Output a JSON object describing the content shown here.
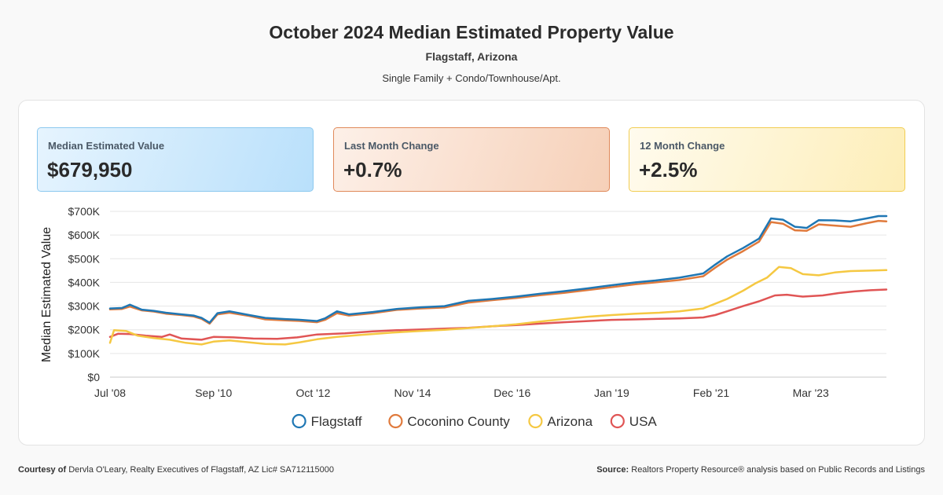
{
  "header": {
    "title": "October 2024 Median Estimated Property Value",
    "location": "Flagstaff, Arizona",
    "property_types": "Single Family + Condo/Townhouse/Apt."
  },
  "cards": [
    {
      "label": "Median Estimated Value",
      "value": "$679,950",
      "color": "#2b8fd6"
    },
    {
      "label": "Last Month Change",
      "value": "+0.7%",
      "color": "#e07a3c"
    },
    {
      "label": "12 Month Change",
      "value": "+2.5%",
      "color": "#f2c230"
    }
  ],
  "footer": {
    "courtesy_label": "Courtesy of",
    "courtesy_text": "Dervla O'Leary, Realty Executives of Flagstaff, AZ Lic# SA712115000",
    "source_label": "Source:",
    "source_text": "Realtors Property Resource® analysis based on Public Records and Listings"
  },
  "chart_data": {
    "type": "line",
    "ylabel": "Median Estimated Value",
    "ylim": [
      0,
      700000
    ],
    "yticks": [
      0,
      100000,
      200000,
      300000,
      400000,
      500000,
      600000,
      700000
    ],
    "ytick_labels": [
      "$0",
      "$100K",
      "$200K",
      "$300K",
      "$400K",
      "$500K",
      "$600K",
      "$700K"
    ],
    "xlim": [
      "2008-07",
      "2024-10"
    ],
    "xticks": [
      "2008-07",
      "2010-09",
      "2012-10",
      "2014-11",
      "2016-12",
      "2019-01",
      "2021-02",
      "2023-03"
    ],
    "xtick_labels": [
      "Jul '08",
      "Sep '10",
      "Oct '12",
      "Nov '14",
      "Dec '16",
      "Jan '19",
      "Feb '21",
      "Mar '23"
    ],
    "grid": true,
    "legend_position": "bottom",
    "series": [
      {
        "name": "Flagstaff",
        "color": "#1f77b4",
        "points": [
          [
            "2008-07",
            290000
          ],
          [
            "2008-10",
            292000
          ],
          [
            "2008-12",
            306000
          ],
          [
            "2009-03",
            285000
          ],
          [
            "2009-06",
            280000
          ],
          [
            "2009-09",
            272000
          ],
          [
            "2010-01",
            265000
          ],
          [
            "2010-04",
            260000
          ],
          [
            "2010-06",
            250000
          ],
          [
            "2010-08",
            230000
          ],
          [
            "2010-10",
            270000
          ],
          [
            "2011-01",
            278000
          ],
          [
            "2011-06",
            262000
          ],
          [
            "2011-10",
            250000
          ],
          [
            "2012-03",
            245000
          ],
          [
            "2012-07",
            242000
          ],
          [
            "2012-11",
            237000
          ],
          [
            "2013-01",
            248000
          ],
          [
            "2013-04",
            278000
          ],
          [
            "2013-07",
            265000
          ],
          [
            "2014-01",
            275000
          ],
          [
            "2014-07",
            288000
          ],
          [
            "2015-01",
            295000
          ],
          [
            "2015-07",
            300000
          ],
          [
            "2016-01",
            322000
          ],
          [
            "2016-07",
            330000
          ],
          [
            "2017-01",
            340000
          ],
          [
            "2017-07",
            352000
          ],
          [
            "2018-01",
            363000
          ],
          [
            "2018-07",
            375000
          ],
          [
            "2019-01",
            388000
          ],
          [
            "2019-07",
            400000
          ],
          [
            "2019-12",
            408000
          ],
          [
            "2020-06",
            420000
          ],
          [
            "2020-12",
            438000
          ],
          [
            "2021-03",
            475000
          ],
          [
            "2021-06",
            510000
          ],
          [
            "2021-10",
            545000
          ],
          [
            "2022-02",
            585000
          ],
          [
            "2022-05",
            670000
          ],
          [
            "2022-08",
            665000
          ],
          [
            "2022-11",
            635000
          ],
          [
            "2023-02",
            630000
          ],
          [
            "2023-05",
            663000
          ],
          [
            "2023-09",
            662000
          ],
          [
            "2024-01",
            658000
          ],
          [
            "2024-05",
            670000
          ],
          [
            "2024-08",
            680000
          ],
          [
            "2024-10",
            680000
          ]
        ]
      },
      {
        "name": "Coconino County",
        "color": "#e07a3c",
        "points": [
          [
            "2008-07",
            286000
          ],
          [
            "2008-10",
            288000
          ],
          [
            "2008-12",
            298000
          ],
          [
            "2009-03",
            282000
          ],
          [
            "2009-06",
            277000
          ],
          [
            "2009-09",
            268000
          ],
          [
            "2010-01",
            262000
          ],
          [
            "2010-04",
            256000
          ],
          [
            "2010-06",
            246000
          ],
          [
            "2010-08",
            226000
          ],
          [
            "2010-10",
            265000
          ],
          [
            "2011-01",
            272000
          ],
          [
            "2011-06",
            258000
          ],
          [
            "2011-10",
            244000
          ],
          [
            "2012-03",
            240000
          ],
          [
            "2012-07",
            237000
          ],
          [
            "2012-11",
            232000
          ],
          [
            "2013-01",
            242000
          ],
          [
            "2013-04",
            270000
          ],
          [
            "2013-07",
            260000
          ],
          [
            "2014-01",
            270000
          ],
          [
            "2014-07",
            284000
          ],
          [
            "2015-01",
            290000
          ],
          [
            "2015-07",
            294000
          ],
          [
            "2016-01",
            315000
          ],
          [
            "2016-07",
            325000
          ],
          [
            "2017-01",
            334000
          ],
          [
            "2017-07",
            346000
          ],
          [
            "2018-01",
            356000
          ],
          [
            "2018-07",
            368000
          ],
          [
            "2019-01",
            380000
          ],
          [
            "2019-07",
            392000
          ],
          [
            "2019-12",
            400000
          ],
          [
            "2020-06",
            410000
          ],
          [
            "2020-12",
            426000
          ],
          [
            "2021-03",
            462000
          ],
          [
            "2021-06",
            496000
          ],
          [
            "2021-10",
            532000
          ],
          [
            "2022-02",
            572000
          ],
          [
            "2022-05",
            655000
          ],
          [
            "2022-08",
            648000
          ],
          [
            "2022-11",
            620000
          ],
          [
            "2023-02",
            618000
          ],
          [
            "2023-05",
            645000
          ],
          [
            "2023-09",
            640000
          ],
          [
            "2024-01",
            635000
          ],
          [
            "2024-05",
            650000
          ],
          [
            "2024-08",
            660000
          ],
          [
            "2024-10",
            658000
          ]
        ]
      },
      {
        "name": "Arizona",
        "color": "#f5c842",
        "points": [
          [
            "2008-07",
            145000
          ],
          [
            "2008-08",
            198000
          ],
          [
            "2008-11",
            195000
          ],
          [
            "2009-02",
            175000
          ],
          [
            "2009-06",
            165000
          ],
          [
            "2009-10",
            158000
          ],
          [
            "2010-02",
            145000
          ],
          [
            "2010-06",
            138000
          ],
          [
            "2010-09",
            150000
          ],
          [
            "2011-01",
            155000
          ],
          [
            "2011-06",
            147000
          ],
          [
            "2011-10",
            140000
          ],
          [
            "2012-03",
            138000
          ],
          [
            "2012-07",
            148000
          ],
          [
            "2012-11",
            160000
          ],
          [
            "2013-04",
            170000
          ],
          [
            "2013-10",
            178000
          ],
          [
            "2014-06",
            188000
          ],
          [
            "2015-01",
            195000
          ],
          [
            "2015-07",
            200000
          ],
          [
            "2016-01",
            207000
          ],
          [
            "2016-07",
            215000
          ],
          [
            "2017-01",
            223000
          ],
          [
            "2017-07",
            235000
          ],
          [
            "2018-01",
            245000
          ],
          [
            "2018-07",
            255000
          ],
          [
            "2019-01",
            262000
          ],
          [
            "2019-07",
            268000
          ],
          [
            "2020-01",
            272000
          ],
          [
            "2020-06",
            278000
          ],
          [
            "2020-12",
            290000
          ],
          [
            "2021-03",
            310000
          ],
          [
            "2021-06",
            330000
          ],
          [
            "2021-10",
            365000
          ],
          [
            "2022-01",
            395000
          ],
          [
            "2022-04",
            420000
          ],
          [
            "2022-07",
            465000
          ],
          [
            "2022-10",
            460000
          ],
          [
            "2023-01",
            435000
          ],
          [
            "2023-05",
            430000
          ],
          [
            "2023-09",
            442000
          ],
          [
            "2024-01",
            448000
          ],
          [
            "2024-06",
            450000
          ],
          [
            "2024-10",
            452000
          ]
        ]
      },
      {
        "name": "USA",
        "color": "#e05555",
        "points": [
          [
            "2008-07",
            170000
          ],
          [
            "2008-09",
            183000
          ],
          [
            "2008-12",
            182000
          ],
          [
            "2009-04",
            175000
          ],
          [
            "2009-08",
            170000
          ],
          [
            "2009-10",
            180000
          ],
          [
            "2010-01",
            163000
          ],
          [
            "2010-06",
            158000
          ],
          [
            "2010-09",
            170000
          ],
          [
            "2011-02",
            168000
          ],
          [
            "2011-07",
            163000
          ],
          [
            "2012-01",
            162000
          ],
          [
            "2012-06",
            168000
          ],
          [
            "2012-11",
            180000
          ],
          [
            "2013-06",
            185000
          ],
          [
            "2014-01",
            193000
          ],
          [
            "2014-07",
            198000
          ],
          [
            "2015-01",
            201000
          ],
          [
            "2015-07",
            205000
          ],
          [
            "2016-01",
            208000
          ],
          [
            "2016-07",
            215000
          ],
          [
            "2017-01",
            220000
          ],
          [
            "2017-07",
            226000
          ],
          [
            "2018-01",
            232000
          ],
          [
            "2018-07",
            237000
          ],
          [
            "2019-01",
            242000
          ],
          [
            "2019-07",
            244000
          ],
          [
            "2020-01",
            246000
          ],
          [
            "2020-06",
            248000
          ],
          [
            "2020-12",
            252000
          ],
          [
            "2021-03",
            262000
          ],
          [
            "2021-06",
            278000
          ],
          [
            "2021-10",
            300000
          ],
          [
            "2022-02",
            320000
          ],
          [
            "2022-06",
            345000
          ],
          [
            "2022-09",
            348000
          ],
          [
            "2023-01",
            340000
          ],
          [
            "2023-06",
            345000
          ],
          [
            "2023-10",
            355000
          ],
          [
            "2024-02",
            362000
          ],
          [
            "2024-06",
            367000
          ],
          [
            "2024-10",
            370000
          ]
        ]
      }
    ]
  }
}
